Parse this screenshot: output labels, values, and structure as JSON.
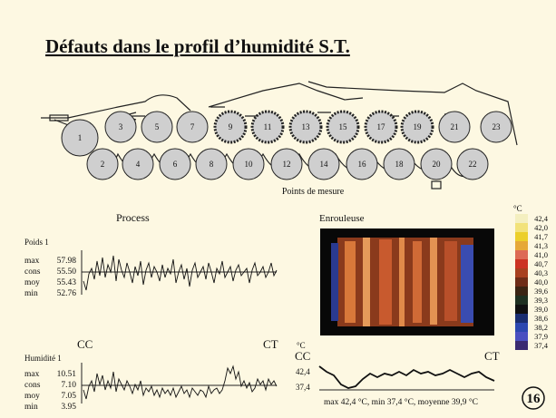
{
  "title": "Défauts dans le profil d’humidité S.T.",
  "machine": {
    "rolls": [
      "1",
      "2",
      "3",
      "4",
      "5",
      "6",
      "7",
      "8",
      "9",
      "10",
      "11",
      "12",
      "13",
      "14",
      "15",
      "16",
      "17",
      "18",
      "19",
      "20",
      "21",
      "22",
      "23"
    ],
    "caption": "Points de mesure"
  },
  "process": {
    "title": "Process",
    "poids": {
      "label": "Poids 1",
      "stats": [
        [
          "max",
          "57.98"
        ],
        [
          "cons",
          "55.50"
        ],
        [
          "moy",
          "55.43"
        ],
        [
          "min",
          "52.76"
        ]
      ]
    },
    "cc": "CC",
    "ct": "CT",
    "humidite": {
      "label": "Humidité 1",
      "stats": [
        [
          "max",
          "10.51"
        ],
        [
          "cons",
          "7.10"
        ],
        [
          "moy",
          "7.05"
        ],
        [
          "min",
          "3.95"
        ]
      ]
    }
  },
  "enrouleuse": {
    "title": "Enrouleuse",
    "unit": "°C",
    "scale": [
      "42,4",
      "42,0",
      "41,7",
      "41,3",
      "41,0",
      "40,7",
      "40,3",
      "40,0",
      "39,6",
      "39,3",
      "39,0",
      "38,6",
      "38,2",
      "37,9",
      "37,4"
    ],
    "colors": [
      "#f4efc0",
      "#f2e27a",
      "#eccf2a",
      "#e6a838",
      "#dd6a55",
      "#cc3322",
      "#a8401e",
      "#6e2c16",
      "#3a2412",
      "#1e3020",
      "#101010",
      "#1a2e70",
      "#2c48b0",
      "#4a50c0",
      "#3a2a70"
    ],
    "profile": {
      "unit": "°C",
      "cc": "CC",
      "ct": "CT",
      "max": "42,4",
      "min": "37,4",
      "caption": "max 42,4 °C, min 37,4 °C, moyenne 39,9 °C"
    }
  },
  "page": "16"
}
